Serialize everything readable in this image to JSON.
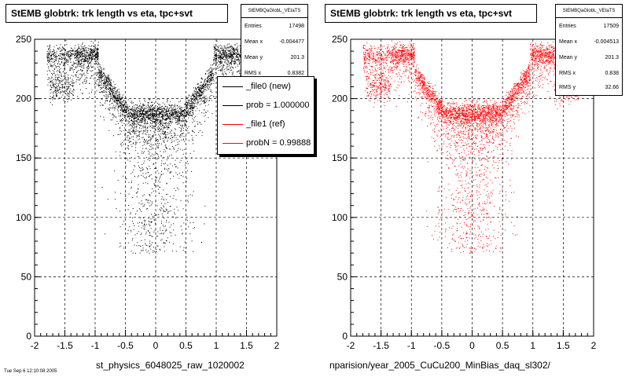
{
  "panels": [
    {
      "title": "StEMB globtrk: trk length vs eta, tpc+svt",
      "x_title": "st_physics_6048025_raw_1020002",
      "stats": {
        "header": "StEMBQaGlobL_VEtaTS",
        "entries_label": "Entries",
        "entries": "17498",
        "mean_label": "Mean x",
        "mean_x": "-0.004477",
        "mean_y_label": "Mean y",
        "mean_y": "201.3",
        "rms_label": "RMS x",
        "rms_x": "0.8382",
        "rms_y_label": "RMS y",
        "rms_y": ""
      },
      "legend": [
        {
          "label": "_file0 (new)",
          "color": "#000000"
        },
        {
          "label": "prob = 1.000000",
          "color": "#000000"
        },
        {
          "label": "_file1 (ref)",
          "color": "#ff0000"
        },
        {
          "label": "probN = 0.99888",
          "color": "#ff0000"
        }
      ]
    },
    {
      "title": "StEMB globtrk: trk length vs eta, tpc+svt",
      "x_title": "nparision/year_2005_CuCu200_MinBias_daq_sl302/",
      "stats": {
        "header": "StEMBQaGlobL_VEtaTS",
        "entries_label": "Entries",
        "entries": "17509",
        "mean_label": "Mean x",
        "mean_x": "-0.004513",
        "mean_y_label": "Mean y",
        "mean_y": "201.3",
        "rms_label": "RMS x",
        "rms_x": "0.838",
        "rms_y_label": "RMS y",
        "rms_y": "32.66"
      }
    }
  ],
  "footer": "Tue Sep 6 12:10:08 2005",
  "chart_data": [
    {
      "type": "scatter",
      "title": "StEMB globtrk: trk length vs eta, tpc+svt",
      "xlabel": "st_physics_6048025_raw_1020002",
      "ylabel": "",
      "xlim": [
        -2,
        2
      ],
      "ylim": [
        0,
        250
      ],
      "x_ticks": [
        "-2",
        "-1.5",
        "-1",
        "-0.5",
        "0",
        "0.5",
        "1",
        "1.5",
        "2"
      ],
      "y_ticks": [
        "0",
        "50",
        "100",
        "150",
        "200",
        "250"
      ],
      "grid": true,
      "legend_position": "top-right",
      "series": [
        {
          "name": "_file0 (new)",
          "color": "#000000",
          "entries": 17498
        }
      ]
    },
    {
      "type": "scatter",
      "title": "StEMB globtrk: trk length vs eta, tpc+svt",
      "xlabel": "nparision/year_2005_CuCu200_MinBias_daq_sl302/",
      "ylabel": "",
      "xlim": [
        -2,
        2
      ],
      "ylim": [
        0,
        250
      ],
      "x_ticks": [
        "-2",
        "-1.5",
        "-1",
        "-0.5",
        "0",
        "0.5",
        "1",
        "1.5",
        "2"
      ],
      "y_ticks": [
        "0",
        "50",
        "100",
        "150",
        "200",
        "250"
      ],
      "grid": true,
      "series": [
        {
          "name": "_file1 (ref)",
          "color": "#ff0000",
          "entries": 17509
        }
      ]
    }
  ]
}
